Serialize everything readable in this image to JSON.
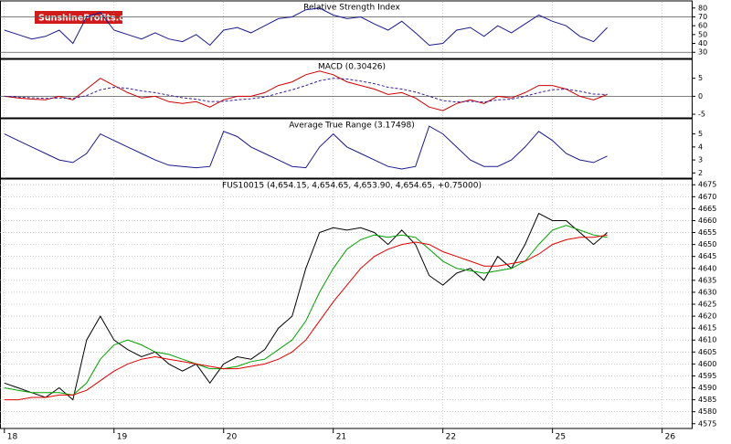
{
  "brand": [
    "Sunshine",
    "Profits.com"
  ],
  "chart_data": [
    {
      "type": "line",
      "title": "Relative Strength Index",
      "x": [
        0,
        0.125,
        0.25,
        0.375,
        0.5,
        0.625,
        0.75,
        0.875,
        1,
        1.125,
        1.25,
        1.375,
        1.5,
        1.625,
        1.75,
        1.875,
        2,
        2.125,
        2.25,
        2.375,
        2.5,
        2.625,
        2.75,
        2.875,
        3,
        3.125,
        3.25,
        3.375,
        3.5,
        3.625,
        3.75,
        3.875,
        4,
        4.125,
        4.25,
        4.375,
        4.5,
        4.625,
        4.75,
        4.875,
        5,
        5.125,
        5.25,
        5.375,
        5.5
      ],
      "series": [
        {
          "color": "#1a1a8c",
          "values": [
            55,
            50,
            45,
            48,
            55,
            40,
            70,
            75,
            55,
            50,
            45,
            52,
            45,
            42,
            50,
            38,
            55,
            58,
            52,
            60,
            68,
            70,
            78,
            80,
            72,
            68,
            70,
            62,
            55,
            65,
            52,
            38,
            40,
            55,
            58,
            48,
            60,
            52,
            62,
            72,
            65,
            60,
            48,
            42,
            58
          ]
        }
      ],
      "xlim": [
        -0.04,
        6.27
      ],
      "ylim": [
        23,
        87
      ],
      "yticks": [
        30,
        40,
        50,
        60,
        70,
        80
      ],
      "reference_lines": [
        70,
        30
      ]
    },
    {
      "type": "line",
      "title": "MACD (0.30426)",
      "x": [
        0,
        0.125,
        0.25,
        0.375,
        0.5,
        0.625,
        0.75,
        0.875,
        1,
        1.125,
        1.25,
        1.375,
        1.5,
        1.625,
        1.75,
        1.875,
        2,
        2.125,
        2.25,
        2.375,
        2.5,
        2.625,
        2.75,
        2.875,
        3,
        3.125,
        3.25,
        3.375,
        3.5,
        3.625,
        3.75,
        3.875,
        4,
        4.125,
        4.25,
        4.375,
        4.5,
        4.625,
        4.75,
        4.875,
        5,
        5.125,
        5.25,
        5.375,
        5.5
      ],
      "series": [
        {
          "color": "#cc0000",
          "values": [
            0,
            -0.5,
            -0.8,
            -1,
            0,
            -1,
            2,
            5,
            3,
            1,
            -0.5,
            0,
            -1.5,
            -2,
            -1.5,
            -3,
            -1,
            0,
            0,
            1,
            3,
            4,
            6,
            7,
            6,
            4,
            3,
            2,
            0.5,
            1,
            -0.5,
            -3,
            -4,
            -2,
            -1,
            -2,
            0,
            -0.5,
            1,
            3,
            3,
            2,
            0,
            -1,
            0.5
          ]
        },
        {
          "color": "#3a1f9c",
          "dashed": true,
          "values": [
            0,
            -0.2,
            -0.4,
            -0.6,
            -0.5,
            -0.6,
            0.2,
            1.8,
            2.5,
            2.2,
            1.5,
            1,
            0.3,
            -0.4,
            -0.8,
            -1.5,
            -1.4,
            -1,
            -0.7,
            -0.2,
            0.8,
            1.8,
            3,
            4.3,
            5,
            4.8,
            4.2,
            3.5,
            2.5,
            2,
            1.2,
            0,
            -1.2,
            -1.6,
            -1.4,
            -1.6,
            -1,
            -0.8,
            0,
            1,
            1.8,
            2,
            1.4,
            0.6,
            0.5
          ]
        }
      ],
      "xlim": [
        -0.04,
        6.27
      ],
      "ylim": [
        -6,
        10
      ],
      "yticks": [
        -5,
        0,
        5
      ],
      "reference_lines": [
        0
      ]
    },
    {
      "type": "line",
      "title": "Average True Range (3.17498)",
      "x": [
        0,
        0.125,
        0.25,
        0.375,
        0.5,
        0.625,
        0.75,
        0.875,
        1,
        1.125,
        1.25,
        1.375,
        1.5,
        1.625,
        1.75,
        1.875,
        2,
        2.125,
        2.25,
        2.375,
        2.5,
        2.625,
        2.75,
        2.875,
        3,
        3.125,
        3.25,
        3.375,
        3.5,
        3.625,
        3.75,
        3.875,
        4,
        4.125,
        4.25,
        4.375,
        4.5,
        4.625,
        4.75,
        4.875,
        5,
        5.125,
        5.25,
        5.375,
        5.5
      ],
      "series": [
        {
          "color": "#1a1a8c",
          "values": [
            5,
            4.5,
            4,
            3.5,
            3,
            2.8,
            3.5,
            5,
            4.5,
            4,
            3.5,
            3,
            2.6,
            2.5,
            2.4,
            2.5,
            5.2,
            4.8,
            4,
            3.5,
            3,
            2.5,
            2.4,
            4,
            5,
            4,
            3.5,
            3,
            2.5,
            2.3,
            2.5,
            5.6,
            5,
            4,
            3,
            2.5,
            2.5,
            3,
            4,
            5.2,
            4.5,
            3.5,
            3,
            2.8,
            3.3
          ]
        }
      ],
      "xlim": [
        -0.04,
        6.27
      ],
      "ylim": [
        1.6,
        6.1
      ],
      "yticks": [
        2,
        3,
        4,
        5
      ]
    },
    {
      "type": "line",
      "title": "FUS10015 (4,654.15, 4,654.65, 4,653.90, 4,654.65, +0.75000)",
      "x": [
        0,
        0.125,
        0.25,
        0.375,
        0.5,
        0.625,
        0.75,
        0.875,
        1,
        1.125,
        1.25,
        1.375,
        1.5,
        1.625,
        1.75,
        1.875,
        2,
        2.125,
        2.25,
        2.375,
        2.5,
        2.625,
        2.75,
        2.875,
        3,
        3.125,
        3.25,
        3.375,
        3.5,
        3.625,
        3.75,
        3.875,
        4,
        4.125,
        4.25,
        4.375,
        4.5,
        4.625,
        4.75,
        4.875,
        5,
        5.125,
        5.25,
        5.375,
        5.5
      ],
      "series": [
        {
          "color": "#000000",
          "values": [
            4592,
            4590,
            4588,
            4586,
            4590,
            4585,
            4610,
            4620,
            4610,
            4606,
            4603,
            4605,
            4600,
            4597,
            4600,
            4592,
            4600,
            4603,
            4602,
            4606,
            4615,
            4620,
            4640,
            4655,
            4657,
            4656,
            4657,
            4655,
            4650,
            4656,
            4650,
            4637,
            4633,
            4638,
            4640,
            4635,
            4645,
            4640,
            4650,
            4663,
            4660,
            4660,
            4655,
            4650,
            4655
          ]
        },
        {
          "color": "#00a000",
          "values": [
            4590,
            4589,
            4588,
            4588,
            4588,
            4587,
            4592,
            4602,
            4608,
            4610,
            4608,
            4605,
            4604,
            4602,
            4600,
            4598,
            4598,
            4599,
            4601,
            4602,
            4606,
            4610,
            4618,
            4630,
            4640,
            4648,
            4652,
            4654,
            4653,
            4654,
            4653,
            4648,
            4643,
            4640,
            4639,
            4638,
            4639,
            4640,
            4643,
            4650,
            4656,
            4658,
            4656,
            4654,
            4653
          ]
        },
        {
          "color": "#e00000",
          "values": [
            4585,
            4585,
            4586,
            4586,
            4587,
            4587,
            4589,
            4593,
            4597,
            4600,
            4602,
            4603,
            4602,
            4601,
            4600,
            4599,
            4598,
            4598,
            4599,
            4600,
            4602,
            4605,
            4610,
            4618,
            4626,
            4633,
            4640,
            4645,
            4648,
            4650,
            4651,
            4650,
            4647,
            4645,
            4643,
            4641,
            4641,
            4642,
            4643,
            4646,
            4650,
            4652,
            4653,
            4653,
            4654
          ]
        }
      ],
      "xlim": [
        -0.04,
        6.27
      ],
      "ylim": [
        4573,
        4677
      ],
      "yticks": [
        4575,
        4580,
        4585,
        4590,
        4595,
        4600,
        4605,
        4610,
        4615,
        4620,
        4625,
        4630,
        4635,
        4640,
        4645,
        4650,
        4655,
        4660,
        4665,
        4670,
        4675
      ],
      "xticks": [
        {
          "value": 0,
          "label": "18"
        },
        {
          "value": 1,
          "label": "19"
        },
        {
          "value": 2,
          "label": "20"
        },
        {
          "value": 3,
          "label": "21"
        },
        {
          "value": 4,
          "label": "22"
        },
        {
          "value": 5,
          "label": "25"
        },
        {
          "value": 6,
          "label": "26"
        }
      ]
    }
  ]
}
